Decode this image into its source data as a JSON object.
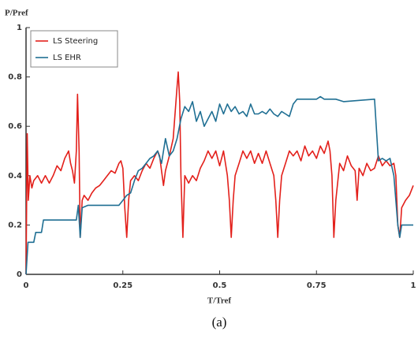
{
  "chart_data": {
    "type": "line",
    "caption": "(a)",
    "y_label": "P/Pref",
    "x_label": "T/Tref",
    "xlim": [
      0,
      1
    ],
    "ylim": [
      0,
      1
    ],
    "xticks": [
      0,
      0.25,
      0.5,
      0.75,
      1
    ],
    "yticks": [
      0,
      0.2,
      0.4,
      0.6,
      0.8,
      1
    ],
    "grid": false,
    "legend": "upper left",
    "series": [
      {
        "name": "LS Steering",
        "color": "#e3201b",
        "x": [
          0,
          0.003,
          0.006,
          0.01,
          0.015,
          0.02,
          0.03,
          0.04,
          0.05,
          0.06,
          0.07,
          0.08,
          0.09,
          0.1,
          0.11,
          0.115,
          0.12,
          0.125,
          0.13,
          0.133,
          0.137,
          0.14,
          0.145,
          0.15,
          0.16,
          0.17,
          0.18,
          0.19,
          0.2,
          0.21,
          0.22,
          0.23,
          0.24,
          0.245,
          0.25,
          0.255,
          0.26,
          0.265,
          0.27,
          0.28,
          0.29,
          0.3,
          0.31,
          0.32,
          0.33,
          0.34,
          0.345,
          0.35,
          0.355,
          0.36,
          0.37,
          0.38,
          0.39,
          0.393,
          0.397,
          0.4,
          0.405,
          0.41,
          0.42,
          0.43,
          0.44,
          0.45,
          0.46,
          0.47,
          0.48,
          0.49,
          0.5,
          0.51,
          0.52,
          0.525,
          0.53,
          0.535,
          0.54,
          0.55,
          0.56,
          0.57,
          0.58,
          0.59,
          0.6,
          0.61,
          0.62,
          0.63,
          0.64,
          0.645,
          0.65,
          0.655,
          0.66,
          0.67,
          0.68,
          0.69,
          0.7,
          0.71,
          0.72,
          0.73,
          0.74,
          0.75,
          0.76,
          0.77,
          0.78,
          0.785,
          0.79,
          0.795,
          0.8,
          0.81,
          0.82,
          0.83,
          0.84,
          0.85,
          0.855,
          0.86,
          0.87,
          0.88,
          0.89,
          0.9,
          0.91,
          0.92,
          0.93,
          0.94,
          0.95,
          0.955,
          0.96,
          0.965,
          0.97,
          0.98,
          0.99,
          1
        ],
        "values": [
          0,
          0.57,
          0.3,
          0.4,
          0.35,
          0.38,
          0.4,
          0.37,
          0.4,
          0.37,
          0.4,
          0.44,
          0.42,
          0.47,
          0.5,
          0.45,
          0.42,
          0.37,
          0.5,
          0.73,
          0.5,
          0.15,
          0.3,
          0.32,
          0.3,
          0.33,
          0.35,
          0.36,
          0.38,
          0.4,
          0.42,
          0.41,
          0.45,
          0.46,
          0.43,
          0.27,
          0.15,
          0.3,
          0.38,
          0.4,
          0.38,
          0.42,
          0.45,
          0.43,
          0.47,
          0.5,
          0.48,
          0.42,
          0.36,
          0.42,
          0.48,
          0.55,
          0.76,
          0.82,
          0.7,
          0.4,
          0.15,
          0.4,
          0.37,
          0.4,
          0.38,
          0.43,
          0.46,
          0.5,
          0.47,
          0.5,
          0.44,
          0.5,
          0.4,
          0.3,
          0.15,
          0.3,
          0.4,
          0.45,
          0.5,
          0.47,
          0.5,
          0.45,
          0.49,
          0.45,
          0.5,
          0.45,
          0.4,
          0.3,
          0.15,
          0.3,
          0.4,
          0.45,
          0.5,
          0.48,
          0.5,
          0.46,
          0.52,
          0.48,
          0.5,
          0.47,
          0.52,
          0.49,
          0.54,
          0.5,
          0.4,
          0.15,
          0.3,
          0.45,
          0.42,
          0.48,
          0.44,
          0.42,
          0.3,
          0.43,
          0.4,
          0.45,
          0.42,
          0.43,
          0.48,
          0.44,
          0.46,
          0.44,
          0.45,
          0.4,
          0.2,
          0.15,
          0.27,
          0.3,
          0.32,
          0.36
        ]
      },
      {
        "name": "LS EHR",
        "color": "#1f6f93",
        "x": [
          0,
          0.005,
          0.02,
          0.025,
          0.04,
          0.045,
          0.13,
          0.135,
          0.14,
          0.145,
          0.16,
          0.24,
          0.25,
          0.26,
          0.27,
          0.28,
          0.29,
          0.3,
          0.31,
          0.32,
          0.33,
          0.34,
          0.35,
          0.36,
          0.37,
          0.38,
          0.39,
          0.4,
          0.41,
          0.42,
          0.43,
          0.44,
          0.45,
          0.46,
          0.47,
          0.48,
          0.49,
          0.5,
          0.51,
          0.52,
          0.53,
          0.54,
          0.55,
          0.56,
          0.57,
          0.58,
          0.59,
          0.6,
          0.61,
          0.62,
          0.63,
          0.64,
          0.65,
          0.66,
          0.67,
          0.68,
          0.69,
          0.7,
          0.75,
          0.76,
          0.77,
          0.8,
          0.82,
          0.9,
          0.91,
          0.92,
          0.93,
          0.94,
          0.95,
          0.96,
          0.965,
          0.97,
          1
        ],
        "values": [
          0,
          0.13,
          0.13,
          0.17,
          0.17,
          0.22,
          0.22,
          0.28,
          0.15,
          0.27,
          0.28,
          0.28,
          0.3,
          0.32,
          0.33,
          0.38,
          0.42,
          0.43,
          0.45,
          0.47,
          0.48,
          0.5,
          0.45,
          0.55,
          0.48,
          0.5,
          0.55,
          0.63,
          0.68,
          0.66,
          0.7,
          0.62,
          0.66,
          0.6,
          0.63,
          0.66,
          0.62,
          0.69,
          0.65,
          0.69,
          0.66,
          0.68,
          0.65,
          0.66,
          0.64,
          0.69,
          0.65,
          0.65,
          0.66,
          0.65,
          0.67,
          0.65,
          0.64,
          0.66,
          0.65,
          0.64,
          0.69,
          0.71,
          0.71,
          0.72,
          0.71,
          0.71,
          0.7,
          0.71,
          0.46,
          0.47,
          0.46,
          0.47,
          0.4,
          0.2,
          0.15,
          0.2,
          0.2
        ]
      }
    ]
  }
}
